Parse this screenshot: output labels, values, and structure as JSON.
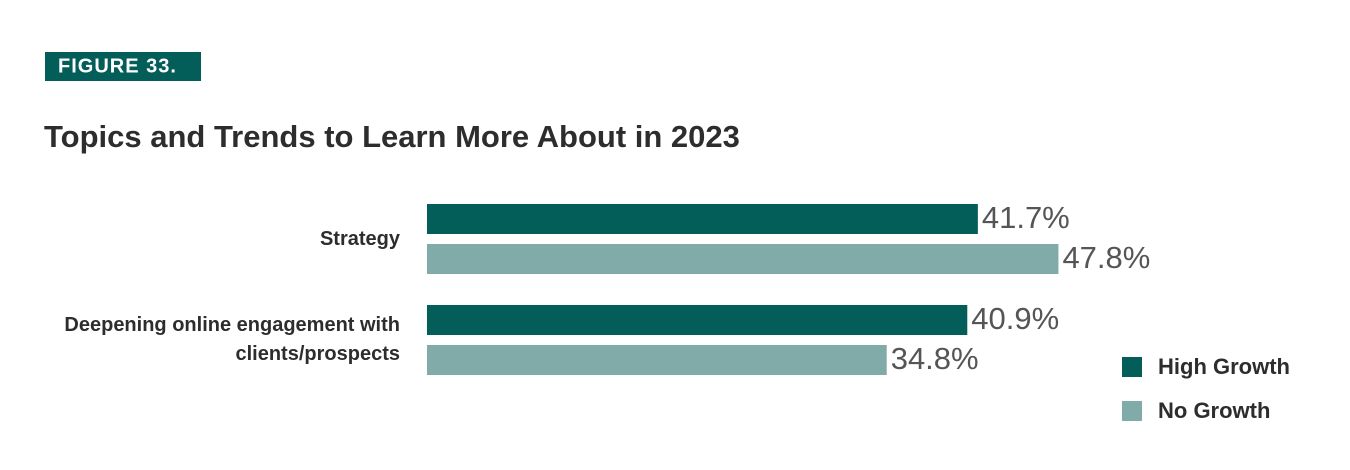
{
  "figure_label": "FIGURE 33.",
  "chart_data": {
    "type": "bar",
    "orientation": "horizontal",
    "title": "Topics and Trends to Learn More About in 2023",
    "categories": [
      "Strategy",
      "Deepening online engagement with clients/prospects"
    ],
    "series": [
      {
        "name": "High Growth",
        "color": "#035e5a",
        "values": [
          41.7,
          40.9
        ],
        "value_labels": [
          "41.7%",
          "40.9%"
        ]
      },
      {
        "name": "No Growth",
        "color": "#80aba8",
        "values": [
          47.8,
          34.8
        ],
        "value_labels": [
          "47.8%",
          "34.8%"
        ]
      }
    ]
  }
}
